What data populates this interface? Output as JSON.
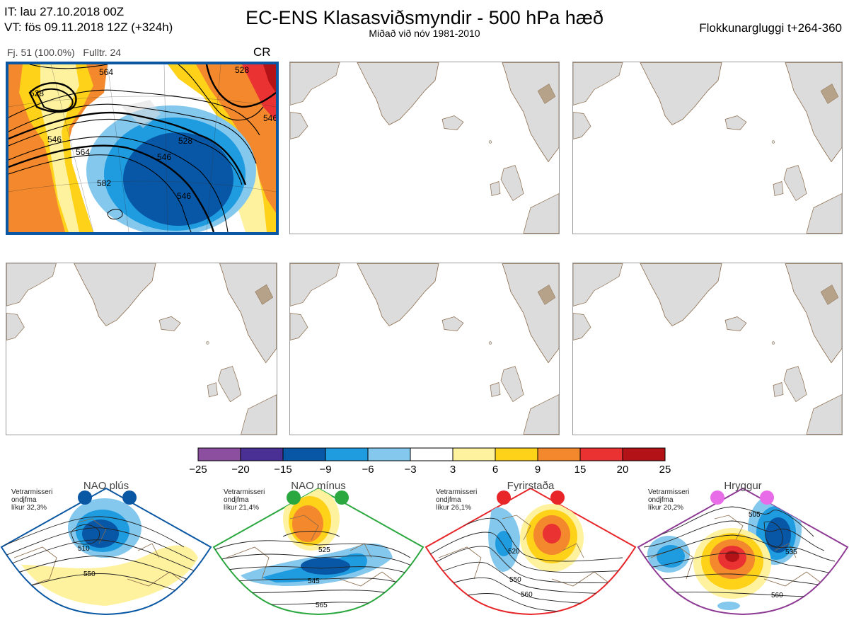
{
  "header": {
    "it_line": "IT: lau 27.10.2018 00Z",
    "vt_line": "VT: fös 09.11.2018 12Z  (+324h)",
    "title": "EC-ENS Klasasviðsmyndir - 500 hPa hæð",
    "subtitle": "Miðað við nóv 1981-2010",
    "window": "Flokkunargluggi t+264-360"
  },
  "cluster_panel": {
    "members": "Fj. 51 (100.0%)",
    "full_res": "Fulltr. 24",
    "regime_code": "CR",
    "contour_labels": [
      "528",
      "546",
      "564",
      "582",
      "546",
      "528",
      "546",
      "564",
      "528",
      "546"
    ],
    "border_color": "#0a57a4"
  },
  "colorbar": {
    "ticks": [
      "−25",
      "−20",
      "−15",
      "−9",
      "−6",
      "−3",
      "3",
      "6",
      "9",
      "15",
      "20",
      "25"
    ],
    "colors": [
      "#8c4f9f",
      "#4a2f94",
      "#0857a6",
      "#1f9be0",
      "#84c8ee",
      "#ffffff",
      "#fff29e",
      "#ffd21a",
      "#f3882c",
      "#ea3232",
      "#b31217"
    ]
  },
  "regimes": [
    {
      "name": "NAO plús",
      "season": "Vetrarmisseri",
      "type": "ondjfma",
      "prob": "líkur 32,3%",
      "color": "#0a57a4",
      "contour_labels": [
        "510",
        "550"
      ]
    },
    {
      "name": "NAO mínus",
      "season": "Vetrarmisseri",
      "type": "ondjfma",
      "prob": "líkur 21,4%",
      "color": "#2aa83f",
      "contour_labels": [
        "525",
        "545",
        "565"
      ]
    },
    {
      "name": "Fyrirstaða",
      "season": "Vetrarmisseri",
      "type": "ondjfma",
      "prob": "líkur 26,1%",
      "color": "#e8262a",
      "contour_labels": [
        "520",
        "550",
        "560"
      ]
    },
    {
      "name": "Hryggur",
      "season": "Vetrarmisseri",
      "type": "ondjfma",
      "prob": "líkur 20,2%",
      "color": "#8e3a94",
      "contour_labels": [
        "505",
        "535",
        "560"
      ]
    }
  ]
}
